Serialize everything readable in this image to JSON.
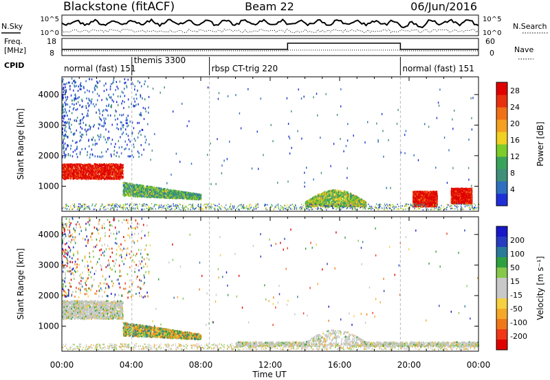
{
  "header": {
    "station": "Blackstone (fitACF)",
    "beam": "Beam 22",
    "date": "06/Jun/2016"
  },
  "side_labels": {
    "nsky": "N.Sky",
    "nsearch": "N.Search",
    "freq_line1": "Freq.",
    "freq_line2": "[MHz]",
    "nave": "Nave",
    "cpid": "CPID"
  },
  "noise_panel": {
    "left_ticks": [
      "10^5",
      "10^0"
    ],
    "right_ticks": [
      "10^5",
      "10^0"
    ]
  },
  "freq_panel": {
    "left_ticks": [
      "18",
      "8"
    ],
    "right_ticks": [
      "60",
      "0"
    ]
  },
  "cpid_segments": [
    {
      "label": "normal (fast) 151",
      "start_h": 0.0,
      "end_h": 4.03
    },
    {
      "label": "themis 3300",
      "start_h": 4.03,
      "end_h": 8.5
    },
    {
      "label": "rbsp CT-trig 220",
      "start_h": 8.5,
      "end_h": 19.5
    },
    {
      "label": "normal (fast) 151",
      "start_h": 19.5,
      "end_h": 24.0
    }
  ],
  "colors": {
    "power": [
      "#1f2fd8",
      "#2e6fbf",
      "#3f8f7a",
      "#3aa35a",
      "#7dcc2a",
      "#f0d020",
      "#f5a020",
      "#f07018",
      "#e83010",
      "#e00000"
    ],
    "velocity": [
      "#e00000",
      "#f03818",
      "#f07818",
      "#f5a828",
      "#f5d040",
      "#c8c8c8",
      "#c8c8c8",
      "#86c84a",
      "#2fa040",
      "#2a7a9a",
      "#283cc0",
      "#1818c8"
    ]
  },
  "chart_data": [
    {
      "type": "heatmap",
      "title": "",
      "xlabel": "Time UT",
      "ylabel": "Slant Range [km]",
      "xlim": [
        0,
        24
      ],
      "ylim": [
        180,
        4580
      ],
      "xticks": [
        "00:00",
        "04:00",
        "08:00",
        "12:00",
        "16:00",
        "20:00",
        "00:00"
      ],
      "yticks": [
        1000,
        2000,
        3000,
        4000
      ],
      "colorbar": {
        "label": "Power [dB]",
        "ticks": [
          4,
          8,
          12,
          16,
          20,
          24,
          28
        ],
        "range": [
          0,
          30
        ]
      },
      "features": [
        {
          "name": "early band",
          "t_start": 0.0,
          "t_end": 3.5,
          "range_km": [
            1200,
            1700
          ],
          "value": 26
        },
        {
          "name": "descending band",
          "t_start": 3.5,
          "t_end": 8.0,
          "range_km": [
            650,
            1100
          ],
          "value": 10
        },
        {
          "name": "ground scatter hump",
          "t_start": 14.0,
          "t_end": 17.5,
          "range_km": [
            300,
            800
          ],
          "value": 12
        },
        {
          "name": "evening echoes A",
          "t_start": 20.2,
          "t_end": 21.6,
          "range_km": [
            300,
            800
          ],
          "value": 28
        },
        {
          "name": "evening echoes B",
          "t_start": 22.4,
          "t_end": 23.6,
          "range_km": [
            400,
            900
          ],
          "value": 28
        }
      ]
    },
    {
      "type": "heatmap",
      "title": "",
      "xlabel": "Time UT",
      "ylabel": "Slant Range [km]",
      "xlim": [
        0,
        24
      ],
      "ylim": [
        180,
        4580
      ],
      "xticks": [
        "00:00",
        "04:00",
        "08:00",
        "12:00",
        "16:00",
        "20:00",
        "00:00"
      ],
      "yticks": [
        1000,
        2000,
        3000,
        4000
      ],
      "colorbar": {
        "label": "Velocity [m s⁻¹]",
        "ticks": [
          "200",
          "100",
          "50",
          "15",
          "-15",
          "-50",
          "-100",
          "-200"
        ],
        "range": [
          -250,
          250
        ]
      },
      "features": [
        {
          "name": "early band",
          "t_start": 0.0,
          "t_end": 3.5,
          "range_km": [
            1200,
            1800
          ],
          "value": 0
        },
        {
          "name": "descending band",
          "t_start": 3.5,
          "t_end": 8.0,
          "range_km": [
            650,
            1100
          ],
          "value": -50
        },
        {
          "name": "ground scatter",
          "t_start": 10.0,
          "t_end": 24.0,
          "range_km": [
            300,
            800
          ],
          "value": 0
        }
      ]
    }
  ]
}
